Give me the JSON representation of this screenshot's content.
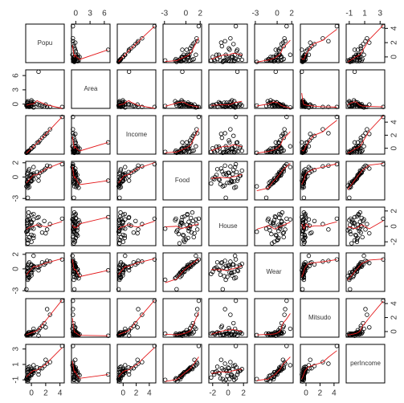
{
  "chart_data": {
    "type": "scatter_matrix",
    "variables": [
      {
        "name": "Popu",
        "lim": [
          -0.8,
          4.6
        ],
        "ticks": [
          0,
          2,
          4
        ],
        "values": [
          1.0,
          -0.5,
          -0.5,
          0.3,
          -0.6,
          -0.5,
          0.0,
          0.3,
          0.0,
          0.0,
          1.8,
          1.5,
          4.3,
          2.6,
          0.3,
          -0.5,
          -0.4,
          -0.6,
          -0.6,
          0.0,
          0.0,
          0.8,
          2.0,
          0.0,
          -0.3,
          0.3,
          2.2,
          1.2,
          -0.4,
          -0.5,
          -0.7,
          -0.6,
          0.0,
          0.3,
          -0.3,
          -0.6,
          -0.4,
          1.0,
          -0.5,
          -0.3
        ]
      },
      {
        "name": "Area",
        "lim": [
          -0.9,
          7.2
        ],
        "ticks": [
          0,
          3,
          6
        ],
        "values": [
          6.8,
          0.3,
          0.6,
          0.0,
          0.4,
          0.2,
          0.8,
          -0.1,
          -0.2,
          -0.2,
          -0.5,
          -0.4,
          -0.6,
          -0.6,
          0.4,
          -0.4,
          -0.3,
          -0.4,
          -0.5,
          0.5,
          0.3,
          0.0,
          -0.1,
          -0.4,
          -0.6,
          -0.7,
          -0.6,
          -0.2,
          -0.5,
          -0.4,
          -0.3,
          -0.1,
          0.1,
          0.0,
          -0.3,
          -0.4,
          -0.2,
          -0.2,
          -0.4,
          0.1
        ]
      },
      {
        "name": "Income",
        "lim": [
          -0.9,
          5.0
        ],
        "ticks": [
          0,
          2,
          4
        ],
        "values": [
          0.9,
          -0.55,
          -0.55,
          0.25,
          -0.65,
          -0.55,
          -0.05,
          0.3,
          0.0,
          0.0,
          1.9,
          1.6,
          4.8,
          2.9,
          0.25,
          -0.5,
          -0.4,
          -0.6,
          -0.65,
          -0.05,
          0.0,
          0.85,
          2.2,
          0.0,
          -0.35,
          0.3,
          2.3,
          1.2,
          -0.45,
          -0.55,
          -0.7,
          -0.65,
          0.0,
          0.25,
          -0.35,
          -0.65,
          -0.45,
          0.9,
          -0.55,
          -0.35
        ]
      },
      {
        "name": "Food",
        "lim": [
          -3.2,
          2.2
        ],
        "ticks": [
          -3,
          0,
          2
        ],
        "values": [
          -0.5,
          -1.2,
          -1.5,
          0.3,
          -0.8,
          -1.0,
          -0.6,
          0.5,
          0.2,
          -0.2,
          1.0,
          0.8,
          1.8,
          1.5,
          -0.3,
          0.6,
          0.9,
          0.4,
          0.0,
          -0.5,
          0.3,
          0.7,
          1.2,
          0.4,
          1.1,
          1.4,
          1.6,
          0.6,
          -0.2,
          -0.9,
          -1.3,
          -0.7,
          -0.4,
          0.2,
          -0.8,
          -0.6,
          -0.3,
          0.1,
          -2.9,
          -1.4
        ]
      },
      {
        "name": "House",
        "lim": [
          -2.5,
          2.5
        ],
        "ticks": [
          -2,
          0,
          2
        ],
        "values": [
          1.2,
          -0.5,
          0.8,
          -1.5,
          0.2,
          -1.0,
          0.5,
          -0.3,
          1.5,
          -2.0,
          0.7,
          -0.8,
          1.0,
          0.3,
          -1.2,
          0.0,
          1.8,
          -0.6,
          -1.7,
          0.4,
          -0.2,
          1.1,
          -0.9,
          0.6,
          -1.4,
          0.9,
          -0.4,
          0.1,
          1.3,
          -2.2,
          -0.7,
          0.5,
          -1.1,
          1.6,
          -0.1,
          0.8,
          -1.8,
          0.2,
          -0.3,
          1.0
        ]
      },
      {
        "name": "Wear",
        "lim": [
          -3.1,
          2.2
        ],
        "ticks": [
          -3,
          0,
          2
        ],
        "values": [
          -0.2,
          -1.0,
          -1.3,
          0.2,
          -0.5,
          -0.8,
          -0.9,
          0.4,
          0.5,
          -0.4,
          0.6,
          0.9,
          1.3,
          1.0,
          -0.1,
          0.5,
          0.7,
          0.2,
          0.1,
          -0.6,
          0.0,
          0.3,
          0.8,
          0.6,
          0.9,
          1.8,
          1.1,
          0.4,
          -0.3,
          -0.7,
          -2.8,
          -0.5,
          -0.2,
          0.3,
          -1.1,
          -0.4,
          0.0,
          0.2,
          -1.5,
          -1.2
        ]
      },
      {
        "name": "Mitsudo",
        "lim": [
          -0.8,
          4.7
        ],
        "ticks": [
          0,
          2,
          4
        ],
        "values": [
          -0.6,
          -0.5,
          -0.5,
          -0.2,
          -0.5,
          -0.5,
          -0.4,
          0.0,
          -0.2,
          -0.2,
          1.2,
          0.8,
          4.4,
          2.4,
          -0.2,
          -0.3,
          -0.3,
          -0.4,
          -0.4,
          -0.4,
          -0.3,
          0.0,
          0.6,
          -0.1,
          -0.1,
          0.4,
          3.2,
          0.5,
          -0.1,
          -0.3,
          -0.5,
          -0.4,
          -0.2,
          -0.1,
          -0.3,
          -0.4,
          -0.3,
          0.2,
          -0.3,
          -0.3
        ]
      },
      {
        "name": "perIncome",
        "lim": [
          -1.4,
          3.6
        ],
        "ticks": [
          -1,
          1,
          3
        ],
        "values": [
          -0.3,
          -1.2,
          -1.0,
          0.1,
          -0.9,
          -0.8,
          -0.4,
          0.3,
          0.2,
          0.0,
          0.8,
          0.5,
          3.4,
          1.3,
          -0.1,
          0.6,
          0.4,
          0.3,
          0.0,
          -0.3,
          0.1,
          0.6,
          1.6,
          0.4,
          0.7,
          0.9,
          1.1,
          0.5,
          0.0,
          -0.7,
          -0.9,
          -0.6,
          -0.2,
          0.2,
          -0.5,
          -0.6,
          -0.3,
          0.1,
          -1.0,
          -0.8
        ]
      }
    ]
  }
}
